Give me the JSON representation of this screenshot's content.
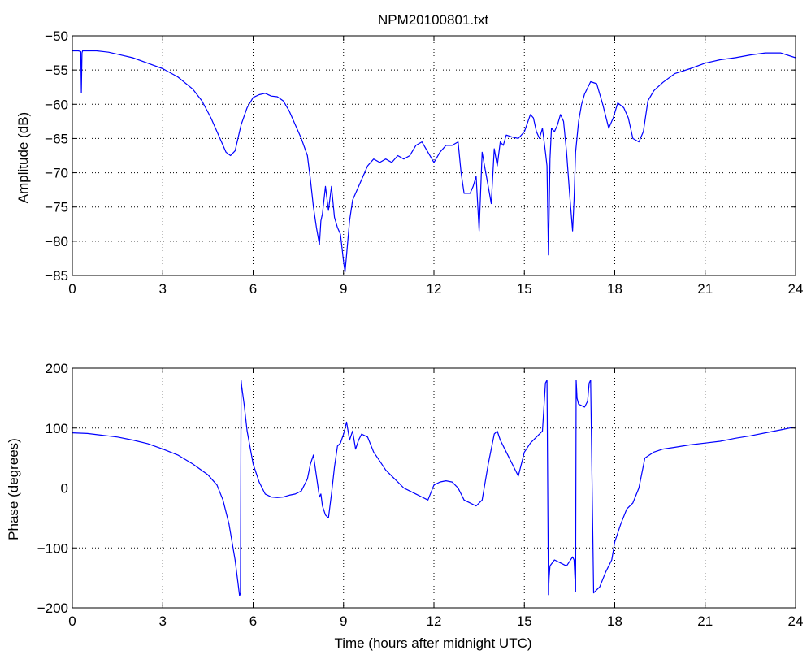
{
  "figure": {
    "title": "NPM20100801.txt"
  },
  "chart_data": [
    {
      "type": "line",
      "title": "NPM20100801.txt",
      "xlabel": "",
      "ylabel": "Amplitude (dB)",
      "xlim": [
        0,
        24
      ],
      "ylim": [
        -85,
        -50
      ],
      "xticks": [
        0,
        3,
        6,
        9,
        12,
        15,
        18,
        21,
        24
      ],
      "xtick_labels": [
        "0",
        "3",
        "6",
        "9",
        "12",
        "15",
        "18",
        "21",
        "24"
      ],
      "yticks": [
        -85,
        -80,
        -75,
        -70,
        -65,
        -60,
        -55,
        -50
      ],
      "ytick_labels": [
        "−85",
        "−80",
        "−75",
        "−70",
        "−65",
        "−60",
        "−55",
        "−50"
      ],
      "grid": true,
      "line_color": "#0000ff",
      "series": [
        {
          "x": [
            0,
            0.2,
            0.28,
            0.3,
            0.32,
            0.34,
            0.4,
            0.8,
            1.2,
            1.6,
            2.0,
            2.5,
            3.0,
            3.5,
            4.0,
            4.3,
            4.6,
            4.9,
            5.1,
            5.25,
            5.4,
            5.6,
            5.8,
            6.0,
            6.2,
            6.4,
            6.6,
            6.8,
            7.0,
            7.2,
            7.4,
            7.6,
            7.8,
            7.9,
            8.0,
            8.1,
            8.2,
            8.25,
            8.3,
            8.4,
            8.5,
            8.6,
            8.7,
            8.8,
            8.9,
            9.0,
            9.05,
            9.1,
            9.2,
            9.3,
            9.4,
            9.6,
            9.8,
            10.0,
            10.2,
            10.4,
            10.6,
            10.8,
            11.0,
            11.2,
            11.4,
            11.6,
            11.8,
            12.0,
            12.2,
            12.4,
            12.6,
            12.8,
            12.9,
            13.0,
            13.2,
            13.3,
            13.4,
            13.5,
            13.6,
            13.7,
            13.8,
            13.9,
            14.0,
            14.1,
            14.2,
            14.3,
            14.4,
            14.6,
            14.8,
            15.0,
            15.2,
            15.3,
            15.4,
            15.5,
            15.6,
            15.7,
            15.75,
            15.8,
            15.85,
            15.9,
            16.0,
            16.1,
            16.2,
            16.3,
            16.4,
            16.5,
            16.6,
            16.65,
            16.7,
            16.8,
            16.9,
            17.0,
            17.2,
            17.4,
            17.6,
            17.8,
            17.95,
            18.1,
            18.3,
            18.45,
            18.6,
            18.8,
            18.95,
            19.1,
            19.3,
            19.6,
            20.0,
            20.5,
            21.0,
            21.5,
            22.0,
            22.5,
            23.0,
            23.5,
            24.0
          ],
          "y": [
            -52.2,
            -52.2,
            -52.3,
            -58.3,
            -52.5,
            -52.2,
            -52.2,
            -52.2,
            -52.4,
            -52.8,
            -53.2,
            -54.0,
            -54.8,
            -56.0,
            -57.8,
            -59.5,
            -62.0,
            -65.0,
            -67.0,
            -67.5,
            -66.8,
            -63.0,
            -60.5,
            -59.0,
            -58.6,
            -58.4,
            -58.8,
            -58.9,
            -59.5,
            -61.0,
            -63.0,
            -65.0,
            -67.5,
            -71.0,
            -75.0,
            -78.0,
            -80.5,
            -77.0,
            -76.0,
            -72.0,
            -75.5,
            -72.0,
            -76.5,
            -78.0,
            -79.0,
            -83.0,
            -84.5,
            -82.0,
            -77.0,
            -74.0,
            -73.0,
            -71.0,
            -69.0,
            -68.0,
            -68.5,
            -68.0,
            -68.5,
            -67.5,
            -68.0,
            -67.5,
            -66.0,
            -65.5,
            -67.0,
            -68.5,
            -67.0,
            -66.0,
            -66.0,
            -65.5,
            -70.0,
            -73.0,
            -73.0,
            -72.0,
            -70.5,
            -78.5,
            -67.0,
            -69.5,
            -72.0,
            -74.5,
            -66.5,
            -69.0,
            -65.5,
            -66.0,
            -64.5,
            -64.8,
            -65.0,
            -64.0,
            -61.5,
            -62.0,
            -64.0,
            -65.0,
            -63.5,
            -67.0,
            -69.0,
            -82.0,
            -68.0,
            -63.5,
            -64.0,
            -63.0,
            -61.5,
            -62.5,
            -67.0,
            -73.0,
            -78.5,
            -74.0,
            -67.0,
            -62.5,
            -60.0,
            -58.5,
            -56.7,
            -57.0,
            -60.0,
            -63.5,
            -62.0,
            -59.8,
            -60.5,
            -62.0,
            -65.0,
            -65.5,
            -64.0,
            -59.5,
            -58.0,
            -56.8,
            -55.5,
            -54.8,
            -54.0,
            -53.5,
            -53.2,
            -52.8,
            -52.5,
            -52.5,
            -53.2
          ]
        }
      ]
    },
    {
      "type": "line",
      "title": "",
      "xlabel": "Time (hours after midnight UTC)",
      "ylabel": "Phase (degrees)",
      "xlim": [
        0,
        24
      ],
      "ylim": [
        -200,
        200
      ],
      "xticks": [
        0,
        3,
        6,
        9,
        12,
        15,
        18,
        21,
        24
      ],
      "xtick_labels": [
        "0",
        "3",
        "6",
        "9",
        "12",
        "15",
        "18",
        "21",
        "24"
      ],
      "yticks": [
        -200,
        -100,
        0,
        100,
        200
      ],
      "ytick_labels": [
        "−200",
        "−100",
        "0",
        "100",
        "200"
      ],
      "grid": true,
      "line_color": "#0000ff",
      "series": [
        {
          "x": [
            0,
            0.5,
            1.0,
            1.5,
            2.0,
            2.5,
            3.0,
            3.5,
            4.0,
            4.5,
            4.8,
            5.0,
            5.2,
            5.4,
            5.5,
            5.55,
            5.58,
            5.6,
            5.62,
            5.7,
            5.8,
            6.0,
            6.2,
            6.4,
            6.6,
            6.8,
            7.0,
            7.2,
            7.4,
            7.6,
            7.8,
            7.9,
            8.0,
            8.1,
            8.2,
            8.25,
            8.3,
            8.4,
            8.5,
            8.6,
            8.7,
            8.8,
            8.9,
            9.0,
            9.1,
            9.2,
            9.3,
            9.4,
            9.5,
            9.6,
            9.8,
            10.0,
            10.2,
            10.4,
            10.6,
            10.8,
            11.0,
            11.2,
            11.4,
            11.6,
            11.8,
            12.0,
            12.2,
            12.4,
            12.6,
            12.8,
            13.0,
            13.2,
            13.4,
            13.6,
            13.8,
            14.0,
            14.1,
            14.2,
            14.4,
            14.6,
            14.8,
            15.0,
            15.2,
            15.4,
            15.6,
            15.7,
            15.75,
            15.8,
            15.82,
            15.85,
            16.0,
            16.2,
            16.4,
            16.6,
            16.65,
            16.7,
            16.72,
            16.75,
            16.8,
            17.0,
            17.1,
            17.15,
            17.2,
            17.3,
            17.5,
            17.7,
            17.9,
            18.0,
            18.2,
            18.4,
            18.6,
            18.8,
            19.0,
            19.3,
            19.6,
            20.0,
            20.5,
            21.0,
            21.5,
            22.0,
            22.5,
            23.0,
            23.5,
            24.0
          ],
          "y": [
            92,
            91,
            88,
            85,
            80,
            74,
            65,
            55,
            40,
            22,
            5,
            -20,
            -60,
            -120,
            -160,
            -180,
            -175,
            180,
            170,
            140,
            95,
            40,
            10,
            -10,
            -15,
            -16,
            -15,
            -12,
            -10,
            -5,
            15,
            40,
            55,
            20,
            -15,
            -10,
            -30,
            -45,
            -50,
            -10,
            35,
            70,
            75,
            90,
            110,
            80,
            95,
            65,
            80,
            90,
            85,
            60,
            45,
            30,
            20,
            10,
            0,
            -5,
            -10,
            -15,
            -20,
            5,
            10,
            12,
            10,
            0,
            -20,
            -25,
            -30,
            -20,
            40,
            90,
            95,
            80,
            60,
            40,
            20,
            60,
            75,
            85,
            95,
            175,
            180,
            -178,
            -150,
            -130,
            -120,
            -125,
            -130,
            -115,
            -120,
            -173,
            180,
            150,
            140,
            135,
            145,
            175,
            180,
            -175,
            -165,
            -140,
            -120,
            -90,
            -60,
            -35,
            -25,
            0,
            50,
            60,
            65,
            68,
            72,
            75,
            78,
            83,
            87,
            92,
            97,
            102
          ]
        }
      ]
    }
  ]
}
